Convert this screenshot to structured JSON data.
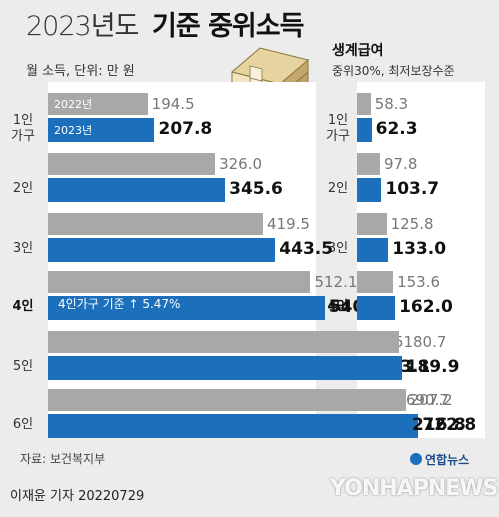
{
  "title_light": "2023년도",
  "title_bold": "기준 중위소득",
  "unit": "월 소득, 단위: 만 원",
  "right_title": "생계급여",
  "right_subtitle": "중위30%, 최저보장수준",
  "legend": {
    "prev": "2022년",
    "curr": "2023년"
  },
  "callout": {
    "text": "4인가구 기준 ↑ 5.47%"
  },
  "source": "자료: 보건복지부",
  "byline": "이재윤 기자  20220729",
  "agency": "연합뉴스",
  "watermark": "YONHAPNEWS",
  "colors": {
    "prev": "#a8a8a8",
    "curr": "#1c6fba"
  },
  "chart_data": [
    {
      "type": "bar",
      "title": "기준 중위소득",
      "categories": [
        "1인 가구",
        "2인",
        "3인",
        "4인",
        "5인",
        "6인"
      ],
      "series": [
        {
          "name": "2022년",
          "values": [
            194.5,
            326.0,
            419.5,
            512.1,
            602.5,
            690.7
          ]
        },
        {
          "name": "2023년",
          "values": [
            207.8,
            345.6,
            443.5,
            540.1,
            633.1,
            722.8
          ]
        }
      ],
      "value_labels": {
        "2022년": [
          "194.5",
          "326.0",
          "419.5",
          "512.1",
          "602.5",
          "690.7"
        ],
        "2023년": [
          "207.8",
          "345.6",
          "443.5",
          "540.1",
          "633.1",
          "722.8"
        ]
      },
      "category_labels": [
        "1인\n가구",
        "2인",
        "3인",
        "4인",
        "5인",
        "6인"
      ]
    },
    {
      "type": "bar",
      "title": "생계급여",
      "categories": [
        "1인 가구",
        "2인",
        "3인",
        "4인",
        "5인",
        "6인"
      ],
      "series": [
        {
          "name": "2022년",
          "values": [
            58.3,
            97.8,
            125.8,
            153.6,
            180.7,
            207.2
          ]
        },
        {
          "name": "2023년",
          "values": [
            62.3,
            103.7,
            133.0,
            162.0,
            189.9,
            216.8
          ]
        }
      ],
      "value_labels": {
        "2022년": [
          "58.3",
          "97.8",
          "125.8",
          "153.6",
          "180.7",
          "207.2"
        ],
        "2023년": [
          "62.3",
          "103.7",
          "133.0",
          "162.0",
          "189.9",
          "216.8"
        ]
      },
      "category_labels": [
        "1인\n가구",
        "2인",
        "3인",
        "4인",
        "5인",
        "6인"
      ]
    }
  ]
}
